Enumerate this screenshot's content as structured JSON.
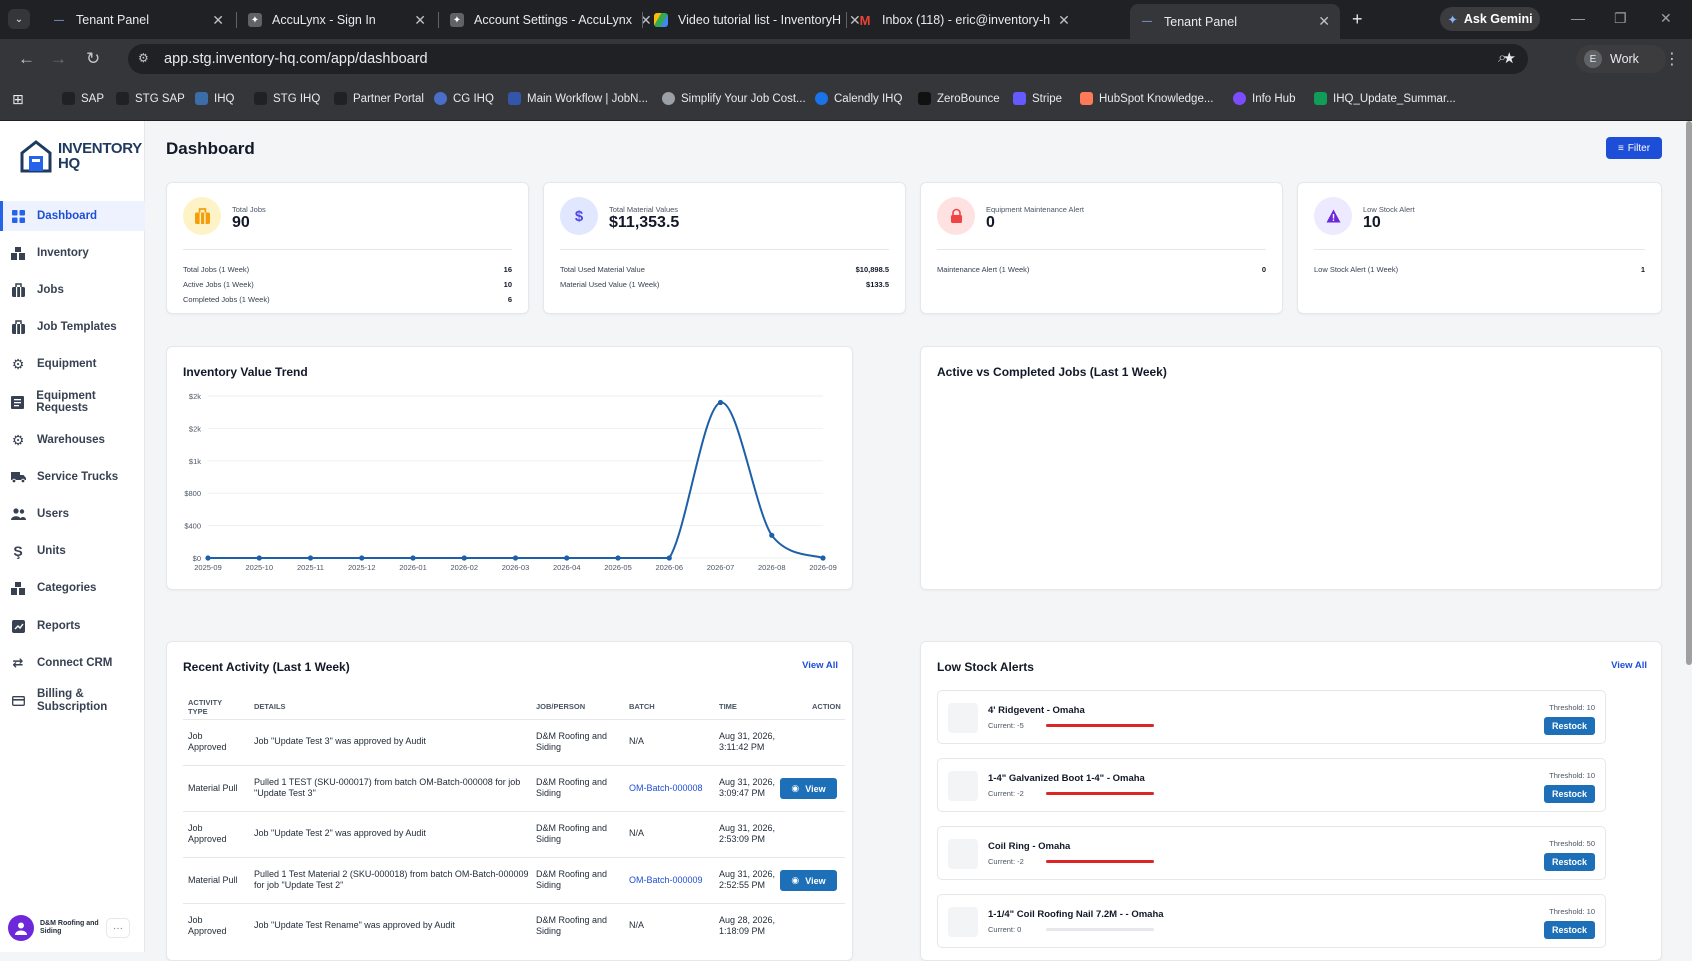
{
  "browser": {
    "tabs": [
      {
        "title": "Tenant Panel",
        "active": false,
        "icon": "inventory-favicon"
      },
      {
        "title": "AccuLynx - Sign In",
        "active": false,
        "icon": "acculynx-favicon"
      },
      {
        "title": "Account Settings - AccuLynx",
        "active": false,
        "icon": "acculynx-favicon"
      },
      {
        "title": "Video tutorial list - InventoryH",
        "active": false,
        "icon": "google-drive-favicon"
      },
      {
        "title": "Inbox (118) - eric@inventory-h",
        "active": false,
        "icon": "gmail-favicon"
      },
      {
        "title": "Tenant Panel",
        "active": true,
        "icon": "inventory-favicon"
      }
    ],
    "gemini_label": "Ask Gemini",
    "url": "app.stg.inventory-hq.com/app/dashboard",
    "profile_label": "Work",
    "profile_initial": "E",
    "bookmarks": [
      "SAP",
      "STG SAP",
      "IHQ",
      "STG IHQ",
      "Partner Portal",
      "CG IHQ",
      "Main Workflow | JobN...",
      "Simplify Your Job Cost...",
      "Calendly IHQ",
      "ZeroBounce",
      "Stripe",
      "HubSpot Knowledge...",
      "Info Hub",
      "IHQ_Update_Summar..."
    ]
  },
  "sidebar": {
    "logo_line1": "INVENTORY",
    "logo_line2": "HQ",
    "items": [
      {
        "label": "Dashboard",
        "icon": "grid-icon",
        "active": true
      },
      {
        "label": "Inventory",
        "icon": "boxes-icon"
      },
      {
        "label": "Jobs",
        "icon": "briefcase-icon"
      },
      {
        "label": "Job Templates",
        "icon": "template-icon"
      },
      {
        "label": "Equipment",
        "icon": "wrench-icon"
      },
      {
        "label": "Equipment Requests",
        "icon": "clipboard-icon"
      },
      {
        "label": "Warehouses",
        "icon": "warehouse-icon"
      },
      {
        "label": "Service Trucks",
        "icon": "truck-icon"
      },
      {
        "label": "Users",
        "icon": "users-icon"
      },
      {
        "label": "Units",
        "icon": "units-icon"
      },
      {
        "label": "Categories",
        "icon": "categories-icon"
      },
      {
        "label": "Reports",
        "icon": "reports-icon"
      },
      {
        "label": "Connect CRM",
        "icon": "crm-icon"
      },
      {
        "label": "Billing & Subscription",
        "icon": "card-icon"
      }
    ],
    "user_name": "D&M Roofing and Siding"
  },
  "header": {
    "title": "Dashboard",
    "filter_label": "Filter"
  },
  "kpis": [
    {
      "label": "Total Jobs",
      "value": "90",
      "color": "#f59e0b",
      "bg": "#fef3c7",
      "rows": [
        [
          "Total Jobs (1 Week)",
          "16"
        ],
        [
          "Active Jobs (1 Week)",
          "10"
        ],
        [
          "Completed Jobs (1 Week)",
          "6"
        ]
      ]
    },
    {
      "label": "Total Material Values",
      "value": "$11,353.5",
      "color": "#4f46e5",
      "bg": "#e0e7ff",
      "rows": [
        [
          "Total Used Material Value",
          "$10,898.5"
        ],
        [
          "Material Used Value (1 Week)",
          "$133.5"
        ]
      ]
    },
    {
      "label": "Equipment Maintenance Alert",
      "value": "0",
      "color": "#ef4444",
      "bg": "#fee2e2",
      "rows": [
        [
          "Maintenance Alert (1 Week)",
          "0"
        ]
      ]
    },
    {
      "label": "Low Stock Alert",
      "value": "10",
      "color": "#6d28d9",
      "bg": "#ede9fe",
      "rows": [
        [
          "Low Stock Alert (1 Week)",
          "1"
        ]
      ]
    }
  ],
  "trend_card": {
    "title": "Inventory Value Trend"
  },
  "active_card": {
    "title": "Active vs Completed Jobs (Last 1 Week)"
  },
  "chart_data": {
    "type": "line",
    "title": "Inventory Value Trend",
    "categories": [
      "2025-09",
      "2025-10",
      "2025-11",
      "2025-12",
      "2026-01",
      "2026-02",
      "2026-03",
      "2026-04",
      "2026-05",
      "2026-06",
      "2026-07",
      "2026-08",
      "2026-09"
    ],
    "values": [
      0,
      0,
      0,
      0,
      0,
      0,
      0,
      0,
      0,
      0,
      1920,
      280,
      0
    ],
    "yticks": [
      0,
      400,
      800,
      1200,
      1600,
      2000
    ],
    "ytick_labels": [
      "$0",
      "$400",
      "$800",
      "$1k",
      "$2k",
      "$2k"
    ],
    "ylim": [
      0,
      2000
    ],
    "color": "#1d5fa8",
    "grid": true
  },
  "activity": {
    "title": "Recent Activity (Last 1 Week)",
    "view_all": "View All",
    "columns": [
      "ACTIVITY TYPE",
      "DETAILS",
      "JOB/PERSON",
      "BATCH",
      "TIME",
      "ACTION"
    ],
    "rows": [
      {
        "type": "Job Approved",
        "details": "Job \"Update Test 3\" was approved by Audit",
        "person": "D&M Roofing and Siding",
        "batch": "N/A",
        "time": "Aug 31, 2026, 3:11:42 PM",
        "action": ""
      },
      {
        "type": "Material Pull",
        "details": "Pulled 1 TEST (SKU-000017) from batch OM-Batch-000008 for job \"Update Test 3\"",
        "person": "D&M Roofing and Siding",
        "batch": "OM-Batch-000008",
        "time": "Aug 31, 2026, 3:09:47 PM",
        "action": "View"
      },
      {
        "type": "Job Approved",
        "details": "Job \"Update Test 2\" was approved by Audit",
        "person": "D&M Roofing and Siding",
        "batch": "N/A",
        "time": "Aug 31, 2026, 2:53:09 PM",
        "action": ""
      },
      {
        "type": "Material Pull",
        "details": "Pulled 1 Test Material 2 (SKU-000018) from batch OM-Batch-000009 for job \"Update Test 2\"",
        "person": "D&M Roofing and Siding",
        "batch": "OM-Batch-000009",
        "time": "Aug 31, 2026, 2:52:55 PM",
        "action": "View"
      },
      {
        "type": "Job Approved",
        "details": "Job \"Update Test Rename\" was approved by Audit",
        "person": "D&M Roofing and Siding",
        "batch": "N/A",
        "time": "Aug 28, 2026, 1:18:09 PM",
        "action": ""
      }
    ]
  },
  "low_stock": {
    "title": "Low Stock Alerts",
    "view_all": "View All",
    "restock_label": "Restock",
    "items": [
      {
        "name": "4' Ridgevent - Omaha",
        "current": "Current: -5",
        "threshold": "Threshold: 10",
        "level": 1.0
      },
      {
        "name": "1-4\" Galvanized Boot 1-4\" - Omaha",
        "current": "Current: -2",
        "threshold": "Threshold: 10",
        "level": 1.0
      },
      {
        "name": "Coil Ring - Omaha",
        "current": "Current: -2",
        "threshold": "Threshold: 50",
        "level": 1.0
      },
      {
        "name": "1-1/4\" Coil Roofing Nail 7.2M - - Omaha",
        "current": "Current: 0",
        "threshold": "Threshold: 10",
        "level": 0.0
      }
    ]
  }
}
